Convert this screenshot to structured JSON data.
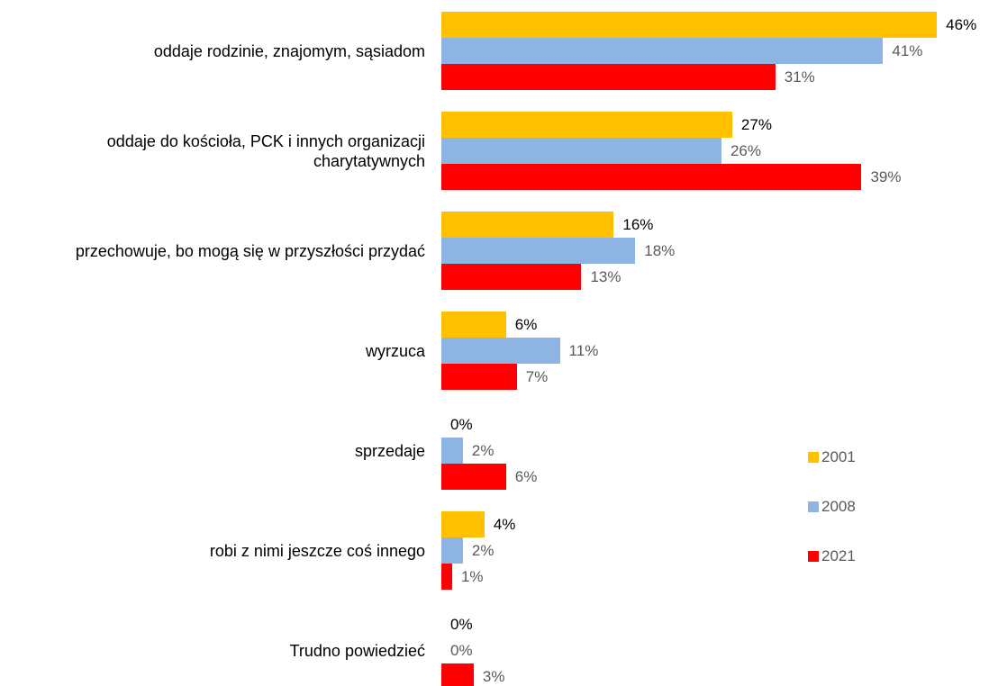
{
  "chart_data": {
    "type": "hbar",
    "categories": [
      "oddaje rodzinie, znajomym, sąsiadom",
      "oddaje do kościoła, PCK i innych organizacji charytatywnych",
      "przechowuje, bo mogą się w przyszłości przydać",
      "wyrzuca",
      "sprzedaje",
      "robi z nimi jeszcze coś innego",
      "Trudno powiedzieć"
    ],
    "series": [
      {
        "name": "2001",
        "color": "#FFC000",
        "values": [
          46,
          27,
          16,
          6,
          0,
          4,
          0
        ],
        "value_labels": [
          "46%",
          "27%",
          "16%",
          "6%",
          "0%",
          "4%",
          "0%"
        ]
      },
      {
        "name": "2008",
        "color": "#8EB4E3",
        "values": [
          41,
          26,
          18,
          11,
          2,
          2,
          0
        ],
        "value_labels": [
          "41%",
          "26%",
          "18%",
          "11%",
          "2%",
          "2%",
          "0%"
        ]
      },
      {
        "name": "2021",
        "color": "#FF0000",
        "values": [
          31,
          39,
          13,
          7,
          6,
          1,
          3
        ],
        "value_labels": [
          "31%",
          "39%",
          "13%",
          "7%",
          "6%",
          "1%",
          "3%"
        ]
      }
    ],
    "legend": "right"
  }
}
